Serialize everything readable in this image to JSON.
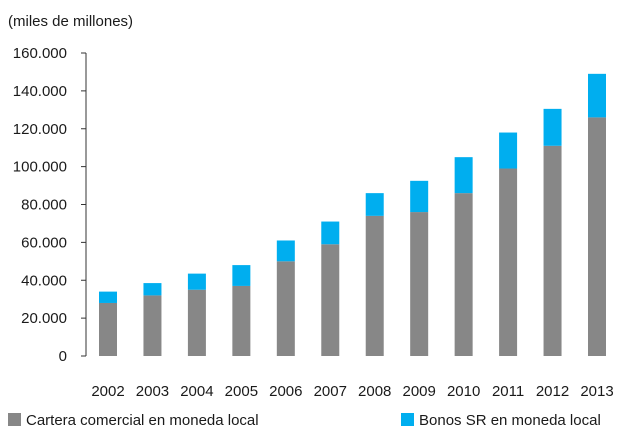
{
  "chart_data": {
    "type": "bar",
    "stacked": true,
    "unit_label": "(miles de millones)",
    "title": "",
    "xlabel": "",
    "ylabel": "",
    "categories": [
      "2002",
      "2003",
      "2004",
      "2005",
      "2006",
      "2007",
      "2008",
      "2009",
      "2010",
      "2011",
      "2012",
      "2013"
    ],
    "series": [
      {
        "name": "Cartera comercial en moneda local",
        "color": "#878787",
        "values": [
          28000,
          32000,
          35000,
          37000,
          50000,
          59000,
          74000,
          76000,
          86000,
          99000,
          111000,
          126000
        ]
      },
      {
        "name": "Bonos SR en moneda local",
        "color": "#00aeef",
        "values": [
          6000,
          6500,
          8500,
          11000,
          11000,
          12000,
          12000,
          16500,
          19000,
          19000,
          19500,
          23000
        ]
      }
    ],
    "ylim": [
      0,
      160000
    ],
    "yticks": [
      0,
      20000,
      40000,
      60000,
      80000,
      100000,
      120000,
      140000,
      160000
    ],
    "ytick_labels": [
      "0",
      "20.000",
      "40.000",
      "60.000",
      "80.000",
      "100.000",
      "120.000",
      "140.000",
      "160.000"
    ],
    "grid": false,
    "legend_position": "bottom"
  }
}
